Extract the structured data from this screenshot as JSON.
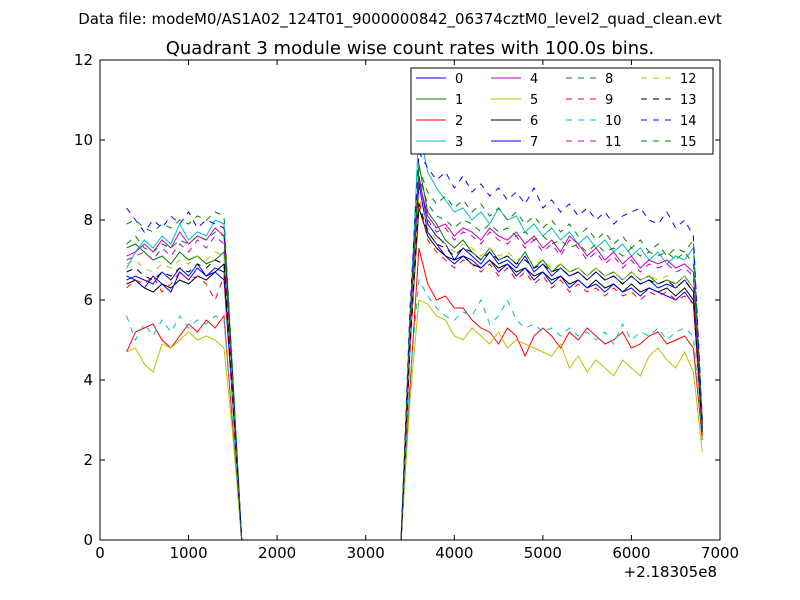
{
  "figure": {
    "suptitle": "Data file: modeM0/AS1A02_124T01_9000000842_06374cztM0_level2_quad_clean.evt"
  },
  "chart_data": {
    "type": "line",
    "title": "Quadrant 3 module wise count rates with 100.0s bins.",
    "xlabel": "",
    "ylabel": "",
    "x_offset_label": "+2.18305e8",
    "xlim": [
      0,
      7000
    ],
    "ylim": [
      0,
      12
    ],
    "xticks": [
      0,
      1000,
      2000,
      3000,
      4000,
      5000,
      6000,
      7000
    ],
    "yticks": [
      0,
      2,
      4,
      6,
      8,
      10,
      12
    ],
    "x": [
      300,
      400,
      500,
      600,
      700,
      800,
      900,
      1000,
      1100,
      1200,
      1300,
      1400,
      1500,
      1600,
      1700,
      1800,
      1900,
      2000,
      2100,
      2200,
      2300,
      2400,
      2500,
      2600,
      2700,
      2800,
      2900,
      3000,
      3100,
      3200,
      3300,
      3400,
      3500,
      3600,
      3700,
      3800,
      3900,
      4000,
      4100,
      4200,
      4300,
      4400,
      4500,
      4600,
      4700,
      4800,
      4900,
      5000,
      5100,
      5200,
      5300,
      5400,
      5500,
      5600,
      5700,
      5800,
      5900,
      6000,
      6100,
      6200,
      6300,
      6400,
      6500,
      6600,
      6700,
      6800
    ],
    "legend": {
      "location": "upper-right",
      "columns": 4
    },
    "series": [
      {
        "name": "0",
        "color": "#0000ff",
        "dash": "solid",
        "values": [
          6.5,
          6.6,
          6.5,
          6.4,
          6.7,
          6.5,
          6.8,
          6.6,
          6.9,
          6.6,
          6.8,
          6.7,
          3.5,
          0,
          0,
          0,
          0,
          0,
          0,
          0,
          0,
          0,
          0,
          0,
          0,
          0,
          0,
          0,
          0,
          0,
          0,
          0,
          5.0,
          9.1,
          7.9,
          7.6,
          7.4,
          7.0,
          7.3,
          7.1,
          6.9,
          7.2,
          6.9,
          7.0,
          6.8,
          7.1,
          6.7,
          6.9,
          6.6,
          6.8,
          6.6,
          6.7,
          6.5,
          6.7,
          6.5,
          6.6,
          6.4,
          6.6,
          6.4,
          6.5,
          6.3,
          6.4,
          6.3,
          6.5,
          6.2,
          2.8
        ]
      },
      {
        "name": "1",
        "color": "#008000",
        "dash": "solid",
        "values": [
          7.3,
          7.4,
          7.2,
          7.0,
          7.1,
          6.9,
          7.2,
          7.0,
          7.1,
          6.9,
          7.0,
          7.2,
          3.8,
          0,
          0,
          0,
          0,
          0,
          0,
          0,
          0,
          0,
          0,
          0,
          0,
          0,
          0,
          0,
          0,
          0,
          0,
          0,
          5.2,
          9.4,
          8.2,
          7.9,
          7.5,
          7.3,
          7.5,
          7.2,
          7.0,
          7.3,
          7.0,
          7.1,
          6.9,
          7.2,
          6.8,
          7.0,
          6.7,
          6.9,
          6.7,
          6.8,
          6.6,
          6.8,
          6.6,
          6.7,
          6.5,
          6.7,
          6.5,
          6.6,
          6.4,
          6.5,
          6.4,
          6.6,
          6.3,
          3.0
        ]
      },
      {
        "name": "2",
        "color": "#ff0000",
        "dash": "solid",
        "values": [
          4.7,
          5.2,
          5.3,
          5.4,
          5.0,
          4.8,
          5.1,
          5.4,
          5.2,
          5.5,
          5.3,
          5.6,
          2.8,
          0,
          0,
          0,
          0,
          0,
          0,
          0,
          0,
          0,
          0,
          0,
          0,
          0,
          0,
          0,
          0,
          0,
          0,
          0,
          3.8,
          7.3,
          6.4,
          6.0,
          6.1,
          5.8,
          5.8,
          5.5,
          5.3,
          5.2,
          4.9,
          5.3,
          5.1,
          4.6,
          5.1,
          5.3,
          5.1,
          4.8,
          5.2,
          5.0,
          5.3,
          5.1,
          4.9,
          5.0,
          5.2,
          4.8,
          4.9,
          5.1,
          5.2,
          4.9,
          5.0,
          5.1,
          4.8,
          2.5
        ]
      },
      {
        "name": "3",
        "color": "#00bfbf",
        "dash": "solid",
        "values": [
          6.8,
          7.2,
          7.5,
          7.3,
          7.6,
          7.4,
          7.9,
          7.5,
          7.7,
          7.6,
          8.0,
          7.9,
          4.0,
          0,
          0,
          0,
          0,
          0,
          0,
          0,
          0,
          0,
          0,
          0,
          0,
          0,
          0,
          0,
          0,
          0,
          0,
          0,
          5.5,
          10.3,
          9.2,
          8.8,
          8.5,
          8.2,
          8.3,
          8.0,
          8.2,
          7.9,
          8.3,
          8.0,
          8.1,
          7.7,
          7.9,
          7.6,
          7.8,
          7.5,
          7.7,
          7.4,
          7.6,
          7.3,
          7.5,
          7.2,
          7.4,
          7.1,
          7.3,
          7.0,
          7.2,
          6.9,
          7.1,
          7.0,
          7.3,
          2.9
        ]
      },
      {
        "name": "4",
        "color": "#bf00bf",
        "dash": "solid",
        "values": [
          7.1,
          7.2,
          7.4,
          7.2,
          7.5,
          7.3,
          7.7,
          7.4,
          7.6,
          7.5,
          7.8,
          7.6,
          3.9,
          0,
          0,
          0,
          0,
          0,
          0,
          0,
          0,
          0,
          0,
          0,
          0,
          0,
          0,
          0,
          0,
          0,
          0,
          0,
          5.4,
          9.0,
          8.1,
          7.8,
          7.9,
          7.6,
          7.8,
          7.7,
          7.5,
          7.8,
          7.6,
          7.5,
          7.7,
          7.4,
          7.6,
          7.3,
          7.5,
          7.2,
          7.6,
          7.4,
          7.1,
          7.3,
          7.0,
          7.2,
          6.9,
          7.1,
          6.8,
          7.0,
          6.9,
          7.0,
          6.8,
          6.9,
          6.7,
          2.9
        ]
      },
      {
        "name": "5",
        "color": "#bfbf00",
        "dash": "solid",
        "values": [
          4.7,
          4.8,
          4.4,
          4.2,
          4.9,
          4.8,
          5.0,
          5.2,
          5.0,
          5.1,
          5.0,
          4.8,
          2.6,
          0,
          0,
          0,
          0,
          0,
          0,
          0,
          0,
          0,
          0,
          0,
          0,
          0,
          0,
          0,
          0,
          0,
          0,
          0,
          3.5,
          6.0,
          5.9,
          5.6,
          5.5,
          5.1,
          5.0,
          5.3,
          5.1,
          4.9,
          5.2,
          4.8,
          5.0,
          4.9,
          4.8,
          4.7,
          4.6,
          4.9,
          4.3,
          4.6,
          4.2,
          4.5,
          4.3,
          4.1,
          4.5,
          4.3,
          4.1,
          4.6,
          4.8,
          4.5,
          4.3,
          4.7,
          4.2,
          2.2
        ]
      },
      {
        "name": "6",
        "color": "#000000",
        "dash": "solid",
        "values": [
          6.4,
          6.5,
          6.3,
          6.2,
          6.4,
          6.3,
          6.5,
          6.4,
          6.6,
          6.5,
          6.7,
          6.9,
          3.5,
          0,
          0,
          0,
          0,
          0,
          0,
          0,
          0,
          0,
          0,
          0,
          0,
          0,
          0,
          0,
          0,
          0,
          0,
          0,
          4.9,
          8.3,
          7.6,
          7.3,
          7.1,
          7.0,
          7.1,
          6.9,
          6.8,
          7.0,
          6.8,
          6.9,
          6.7,
          6.8,
          6.6,
          6.7,
          6.5,
          6.6,
          6.4,
          6.5,
          6.3,
          6.5,
          6.3,
          6.4,
          6.2,
          6.4,
          6.2,
          6.3,
          6.2,
          6.3,
          6.1,
          6.3,
          6.0,
          2.7
        ]
      },
      {
        "name": "7",
        "color": "#0000ff",
        "dash": "solid",
        "values": [
          6.6,
          6.5,
          6.3,
          6.6,
          6.4,
          6.2,
          6.7,
          6.5,
          6.8,
          6.6,
          6.7,
          6.5,
          3.4,
          0,
          0,
          0,
          0,
          0,
          0,
          0,
          0,
          0,
          0,
          0,
          0,
          0,
          0,
          0,
          0,
          0,
          0,
          0,
          4.8,
          8.9,
          7.7,
          7.4,
          7.1,
          6.9,
          7.1,
          7.0,
          6.8,
          7.0,
          6.7,
          6.9,
          6.6,
          6.8,
          6.5,
          6.7,
          6.4,
          6.6,
          6.3,
          6.5,
          6.3,
          6.4,
          6.2,
          6.4,
          6.2,
          6.3,
          6.1,
          6.3,
          6.2,
          6.1,
          6.0,
          6.2,
          5.9,
          2.8
        ]
      },
      {
        "name": "8",
        "color": "#008000",
        "dash": "dashed",
        "values": [
          7.9,
          8.0,
          7.8,
          7.7,
          7.9,
          7.8,
          8.0,
          7.9,
          8.1,
          8.0,
          8.2,
          8.1,
          4.1,
          0,
          0,
          0,
          0,
          0,
          0,
          0,
          0,
          0,
          0,
          0,
          0,
          0,
          0,
          0,
          0,
          0,
          0,
          0,
          5.6,
          9.3,
          8.7,
          8.4,
          8.6,
          8.3,
          8.5,
          8.2,
          8.4,
          8.1,
          8.3,
          8.0,
          8.2,
          7.9,
          8.1,
          7.8,
          8.0,
          7.7,
          7.9,
          7.6,
          7.8,
          7.5,
          7.7,
          7.4,
          7.6,
          7.3,
          7.5,
          7.2,
          7.4,
          7.1,
          7.3,
          7.2,
          7.5,
          3.0
        ]
      },
      {
        "name": "9",
        "color": "#ff0000",
        "dash": "dashed",
        "values": [
          6.3,
          6.5,
          6.4,
          6.6,
          6.2,
          6.4,
          6.7,
          6.5,
          6.6,
          6.4,
          6.0,
          6.6,
          3.3,
          0,
          0,
          0,
          0,
          0,
          0,
          0,
          0,
          0,
          0,
          0,
          0,
          0,
          0,
          0,
          0,
          0,
          0,
          0,
          4.7,
          8.5,
          7.5,
          7.2,
          7.0,
          6.8,
          7.0,
          6.9,
          6.7,
          6.9,
          6.6,
          6.8,
          6.5,
          6.7,
          6.4,
          6.6,
          6.3,
          6.5,
          6.2,
          6.4,
          6.2,
          6.3,
          6.1,
          6.3,
          6.1,
          6.2,
          6.0,
          6.2,
          6.1,
          6.2,
          6.0,
          6.1,
          5.9,
          2.6
        ]
      },
      {
        "name": "10",
        "color": "#00bfbf",
        "dash": "dashed",
        "values": [
          5.6,
          5.0,
          5.4,
          5.1,
          5.5,
          5.2,
          5.6,
          5.3,
          5.5,
          5.4,
          5.6,
          5.5,
          2.9,
          0,
          0,
          0,
          0,
          0,
          0,
          0,
          0,
          0,
          0,
          0,
          0,
          0,
          0,
          0,
          0,
          0,
          0,
          0,
          4.0,
          6.5,
          6.1,
          5.8,
          5.6,
          5.5,
          5.7,
          5.6,
          6.0,
          5.4,
          5.6,
          6.0,
          5.5,
          5.3,
          5.4,
          5.2,
          5.3,
          5.1,
          5.3,
          5.1,
          5.2,
          5.0,
          5.2,
          4.9,
          5.4,
          5.0,
          5.2,
          5.1,
          5.3,
          5.0,
          5.2,
          5.3,
          5.1,
          2.5
        ]
      },
      {
        "name": "11",
        "color": "#bf00bf",
        "dash": "dashed",
        "values": [
          7.0,
          7.1,
          7.2,
          7.0,
          7.3,
          7.1,
          7.4,
          7.2,
          7.5,
          7.3,
          7.6,
          7.4,
          3.8,
          0,
          0,
          0,
          0,
          0,
          0,
          0,
          0,
          0,
          0,
          0,
          0,
          0,
          0,
          0,
          0,
          0,
          0,
          0,
          5.3,
          9.0,
          8.0,
          7.7,
          7.8,
          7.5,
          7.7,
          7.6,
          7.4,
          7.7,
          7.5,
          7.4,
          7.6,
          7.3,
          7.5,
          7.2,
          7.4,
          7.1,
          7.5,
          7.3,
          7.0,
          7.2,
          6.9,
          7.1,
          6.8,
          7.0,
          6.7,
          6.9,
          6.8,
          6.9,
          6.7,
          6.8,
          6.6,
          2.9
        ]
      },
      {
        "name": "12",
        "color": "#bfbf00",
        "dash": "dashed",
        "values": [
          6.9,
          7.0,
          6.8,
          6.7,
          6.9,
          6.8,
          7.0,
          6.9,
          7.1,
          7.0,
          7.2,
          7.1,
          3.6,
          0,
          0,
          0,
          0,
          0,
          0,
          0,
          0,
          0,
          0,
          0,
          0,
          0,
          0,
          0,
          0,
          0,
          0,
          0,
          5.0,
          8.6,
          7.8,
          7.5,
          7.4,
          7.2,
          7.4,
          7.3,
          7.1,
          7.3,
          7.1,
          7.2,
          7.0,
          7.1,
          6.9,
          7.0,
          6.8,
          6.9,
          6.7,
          6.8,
          6.6,
          6.8,
          6.6,
          6.7,
          6.5,
          6.7,
          6.5,
          6.6,
          6.5,
          6.6,
          6.4,
          6.6,
          6.3,
          2.8
        ]
      },
      {
        "name": "13",
        "color": "#000000",
        "dash": "dashed",
        "values": [
          6.7,
          6.8,
          6.6,
          6.5,
          6.7,
          6.6,
          6.8,
          6.7,
          6.9,
          6.8,
          7.0,
          6.9,
          3.5,
          0,
          0,
          0,
          0,
          0,
          0,
          0,
          0,
          0,
          0,
          0,
          0,
          0,
          0,
          0,
          0,
          0,
          0,
          0,
          4.9,
          8.4,
          7.7,
          7.4,
          7.3,
          7.1,
          7.3,
          7.2,
          7.0,
          7.2,
          7.0,
          7.1,
          6.9,
          7.0,
          6.8,
          6.9,
          6.7,
          6.8,
          6.6,
          6.7,
          6.5,
          6.7,
          6.5,
          6.6,
          6.4,
          6.6,
          6.4,
          6.5,
          6.4,
          6.5,
          6.3,
          6.5,
          6.2,
          2.7
        ]
      },
      {
        "name": "14",
        "color": "#0000ff",
        "dash": "dashed",
        "values": [
          8.3,
          8.0,
          7.7,
          8.0,
          7.8,
          8.1,
          7.9,
          8.2,
          7.8,
          8.0,
          7.9,
          7.8,
          4.0,
          0,
          0,
          0,
          0,
          0,
          0,
          0,
          0,
          0,
          0,
          0,
          0,
          0,
          0,
          0,
          0,
          0,
          0,
          0,
          5.8,
          9.7,
          9.3,
          9.0,
          9.2,
          8.8,
          9.1,
          8.7,
          8.9,
          8.6,
          8.8,
          8.5,
          8.7,
          8.4,
          8.8,
          8.3,
          8.5,
          8.2,
          8.4,
          8.1,
          8.3,
          8.0,
          8.2,
          7.9,
          8.1,
          8.2,
          8.3,
          8.0,
          7.9,
          8.2,
          7.8,
          8.0,
          7.6,
          3.0
        ]
      },
      {
        "name": "15",
        "color": "#008000",
        "dash": "dashed",
        "values": [
          7.4,
          7.6,
          7.3,
          7.2,
          7.4,
          7.3,
          7.5,
          7.4,
          7.6,
          7.5,
          7.7,
          7.6,
          3.9,
          0,
          0,
          0,
          0,
          0,
          0,
          0,
          0,
          0,
          0,
          0,
          0,
          0,
          0,
          0,
          0,
          0,
          0,
          0,
          5.4,
          9.1,
          8.4,
          8.1,
          8.0,
          7.8,
          8.0,
          7.9,
          7.7,
          7.9,
          7.7,
          7.8,
          7.6,
          7.7,
          7.5,
          7.6,
          7.4,
          7.5,
          7.3,
          7.4,
          7.2,
          7.4,
          7.2,
          7.3,
          7.1,
          7.3,
          7.1,
          7.2,
          7.1,
          7.2,
          7.0,
          7.2,
          6.9,
          2.9
        ]
      }
    ]
  }
}
